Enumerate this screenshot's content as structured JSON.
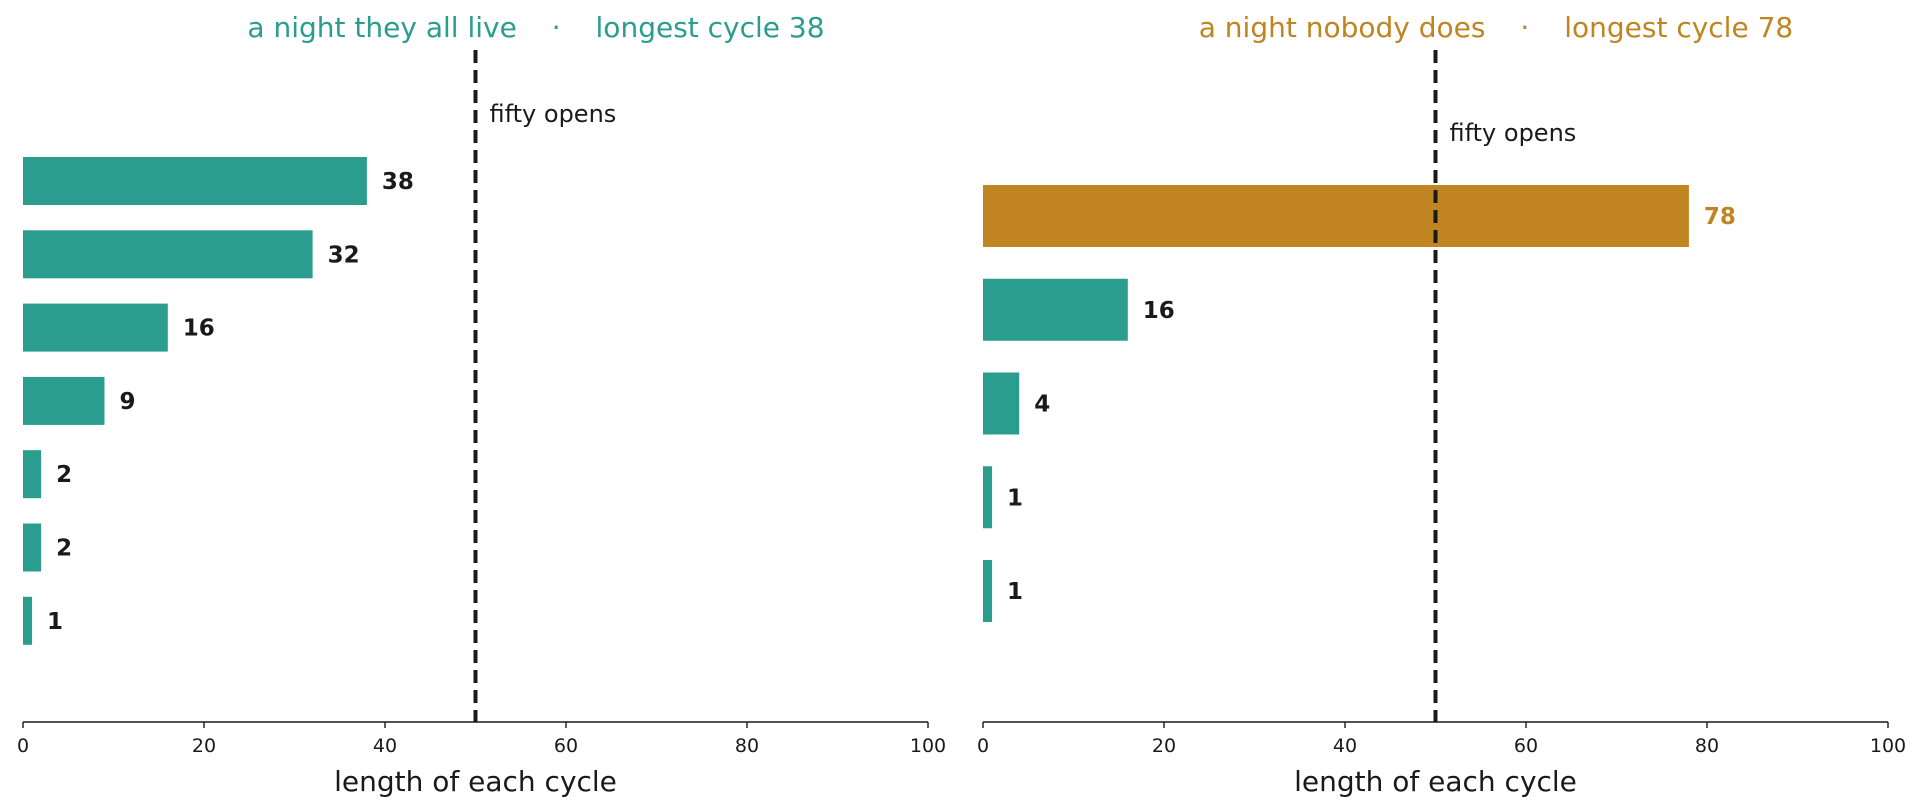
{
  "colors": {
    "normal": "#2a9d8f",
    "highlight": "#c08420",
    "ink": "#1a1a1a"
  },
  "chart_data": [
    {
      "type": "bar",
      "orientation": "horizontal",
      "title_left": "a night they all live",
      "title_sep": "·",
      "title_right": "longest cycle 38",
      "title_color": "#2a9d8f",
      "values": [
        38,
        32,
        16,
        9,
        2,
        2,
        1
      ],
      "value_labels": [
        "38",
        "32",
        "16",
        "9",
        "2",
        "2",
        "1"
      ],
      "highlight_index": -1,
      "xlabel": "length of each cycle",
      "xlim": [
        0,
        100
      ],
      "xticks": [
        0,
        20,
        40,
        60,
        80,
        100
      ],
      "xtick_labels": [
        "0",
        "20",
        "40",
        "60",
        "80",
        "100"
      ],
      "reference_line": {
        "x": 50,
        "label": "fifty opens",
        "style": "dashed"
      },
      "grid": false
    },
    {
      "type": "bar",
      "orientation": "horizontal",
      "title_left": "a night nobody does",
      "title_sep": "·",
      "title_right": "longest cycle 78",
      "title_color": "#c08420",
      "values": [
        78,
        16,
        4,
        1,
        1
      ],
      "value_labels": [
        "78",
        "16",
        "4",
        "1",
        "1"
      ],
      "highlight_index": 0,
      "xlabel": "length of each cycle",
      "xlim": [
        0,
        100
      ],
      "xticks": [
        0,
        20,
        40,
        60,
        80,
        100
      ],
      "xtick_labels": [
        "0",
        "20",
        "40",
        "60",
        "80",
        "100"
      ],
      "reference_line": {
        "x": 50,
        "label": "fifty opens",
        "style": "dashed"
      },
      "grid": false
    }
  ]
}
